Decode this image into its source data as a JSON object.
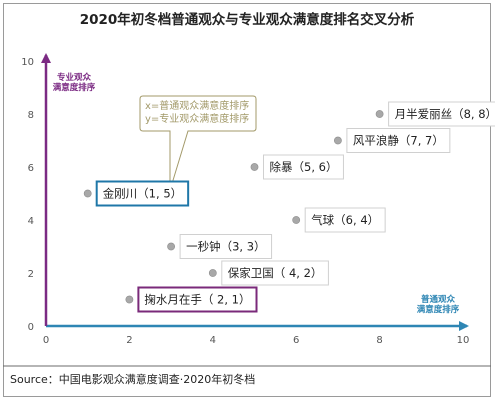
{
  "chart_data": {
    "type": "scatter",
    "title": "2020年初冬档普通观众与专业观众满意度排名交叉分析",
    "xlabel": "普通观众满意度排序",
    "ylabel": "专业观众满意度排序",
    "xlim": [
      0,
      10
    ],
    "ylim": [
      0,
      10
    ],
    "x_ticks": [
      0,
      2,
      4,
      6,
      8,
      10
    ],
    "y_ticks": [
      0,
      2,
      4,
      6,
      8,
      10
    ],
    "grid": false,
    "points": [
      {
        "label": "月半爱丽丝（8, 8）",
        "x": 8,
        "y": 8
      },
      {
        "label": "风平浪静（7, 7）",
        "x": 7,
        "y": 7
      },
      {
        "label": "除暴（5, 6）",
        "x": 5,
        "y": 6
      },
      {
        "label": "金刚川（1, 5）",
        "x": 1,
        "y": 5,
        "highlight": "#1f77a8"
      },
      {
        "label": "气球（6, 4）",
        "x": 6,
        "y": 4
      },
      {
        "label": "一秒钟（3, 3）",
        "x": 3,
        "y": 3
      },
      {
        "label": "保家卫国（ 4, 2）",
        "x": 4,
        "y": 2
      },
      {
        "label": "掬水月在手（ 2, 1）",
        "x": 2,
        "y": 1,
        "highlight": "#7a2a7a"
      }
    ],
    "annotation": {
      "lines": [
        "x=普通观众满意度排序",
        "y=专业观众满意度排序"
      ],
      "anchor": [
        3,
        5.5
      ]
    },
    "colors": {
      "x_axis": "#2e86b4",
      "y_axis": "#7b2a83",
      "marker": "#a8a8a8",
      "annotation_border": "#a39a6a",
      "annotation_text": "#a39a6a"
    }
  },
  "source": "Source：中国电影观众满意度调查·2020年初冬档"
}
